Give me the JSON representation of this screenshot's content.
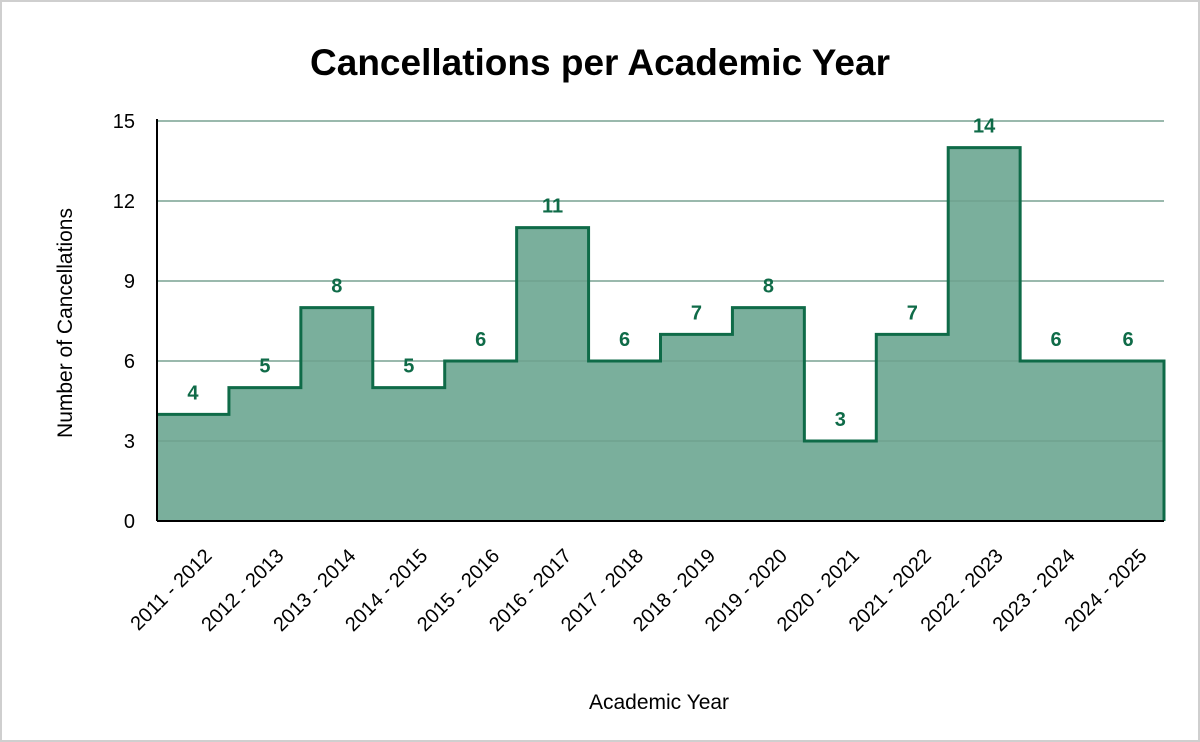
{
  "chart_data": {
    "type": "area",
    "step": true,
    "title": "Cancellations per Academic Year",
    "xlabel": "Academic Year",
    "ylabel": "Number of Cancellations",
    "categories": [
      "2011 - 2012",
      "2012 - 2013",
      "2013 - 2014",
      "2014 - 2015",
      "2015 - 2016",
      "2016 - 2017",
      "2017 - 2018",
      "2018 - 2019",
      "2019 - 2020",
      "2020 - 2021",
      "2021 - 2022",
      "2022 - 2023",
      "2023 - 2024",
      "2024 - 2025"
    ],
    "series": [
      {
        "values": [
          4,
          5,
          8,
          5,
          6,
          11,
          6,
          7,
          8,
          3,
          7,
          14,
          6,
          6
        ]
      }
    ],
    "yticks": [
      0,
      3,
      6,
      9,
      12,
      15
    ],
    "ylim": [
      0,
      15
    ],
    "grid": true,
    "legend": "none",
    "data_labels": true,
    "colors": {
      "fill": "#7aaf9c",
      "line": "#0f6b48",
      "label": "#0f6b48",
      "grid": "#cccccc",
      "axis": "#000000"
    }
  }
}
